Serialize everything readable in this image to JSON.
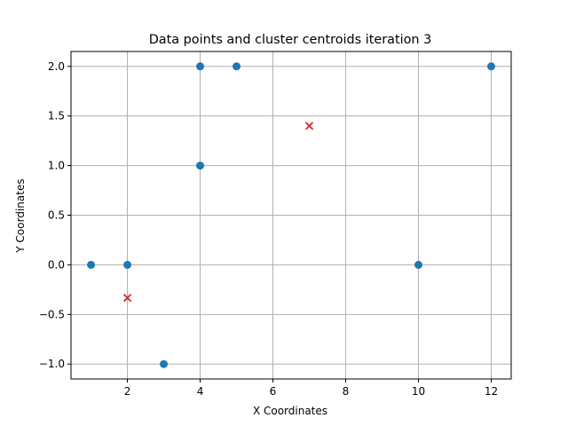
{
  "chart_data": {
    "type": "scatter",
    "title": "Data points and cluster centroids iteration 3",
    "xlabel": "X Coordinates",
    "ylabel": "Y Coordinates",
    "xlim": [
      0.45,
      12.55
    ],
    "ylim": [
      -1.15,
      2.15
    ],
    "xticks": [
      2,
      4,
      6,
      8,
      10,
      12
    ],
    "yticks": [
      -1.0,
      -0.5,
      0.0,
      0.5,
      1.0,
      1.5,
      2.0
    ],
    "grid": true,
    "series": [
      {
        "marker": "circle",
        "color": "#1f77b4",
        "points": [
          {
            "x": 1,
            "y": 0
          },
          {
            "x": 2,
            "y": 0
          },
          {
            "x": 3,
            "y": -1
          },
          {
            "x": 4,
            "y": 1
          },
          {
            "x": 4,
            "y": 2
          },
          {
            "x": 5,
            "y": 2
          },
          {
            "x": 10,
            "y": 0
          },
          {
            "x": 12,
            "y": 2
          }
        ]
      },
      {
        "marker": "x",
        "color": "#d62728",
        "points": [
          {
            "x": 2,
            "y": -0.333
          },
          {
            "x": 7,
            "y": 1.4
          }
        ]
      }
    ]
  }
}
